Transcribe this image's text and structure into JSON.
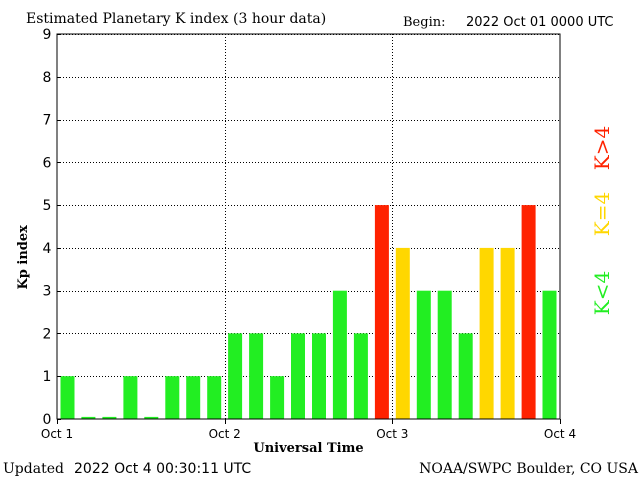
{
  "header": {
    "title": "Estimated Planetary K index (3 hour data)",
    "begin_label": "Begin:",
    "begin_value": "2022 Oct 01 0000 UTC"
  },
  "footer": {
    "updated_label": "Updated",
    "updated_value": "2022 Oct  4 00:30:11 UTC",
    "credit": "NOAA/SWPC Boulder, CO USA"
  },
  "colors": {
    "low": "#22ee22",
    "mid": "#ffd700",
    "high": "#ff2200",
    "grid": "#000000",
    "frame": "#000000"
  },
  "legend": {
    "low": "K<4",
    "mid": "K=4",
    "high": "K>4"
  },
  "chart_data": {
    "type": "bar",
    "title": "Estimated Planetary K index (3 hour data)",
    "xlabel": "Universal Time",
    "ylabel": "Kp index",
    "ylim": [
      0,
      9
    ],
    "yticks": [
      "0",
      "1",
      "2",
      "3",
      "4",
      "5",
      "6",
      "7",
      "8",
      "9"
    ],
    "xticks": [
      "Oct 1",
      "Oct 2",
      "Oct 3",
      "Oct 4"
    ],
    "grid": true,
    "bar_interval_hours": 3,
    "values": [
      1,
      0.05,
      0.05,
      1,
      0.05,
      1,
      1,
      1,
      2,
      2,
      1,
      2,
      2,
      3,
      2,
      5,
      4,
      3,
      3,
      2,
      4,
      4,
      5,
      3
    ]
  }
}
